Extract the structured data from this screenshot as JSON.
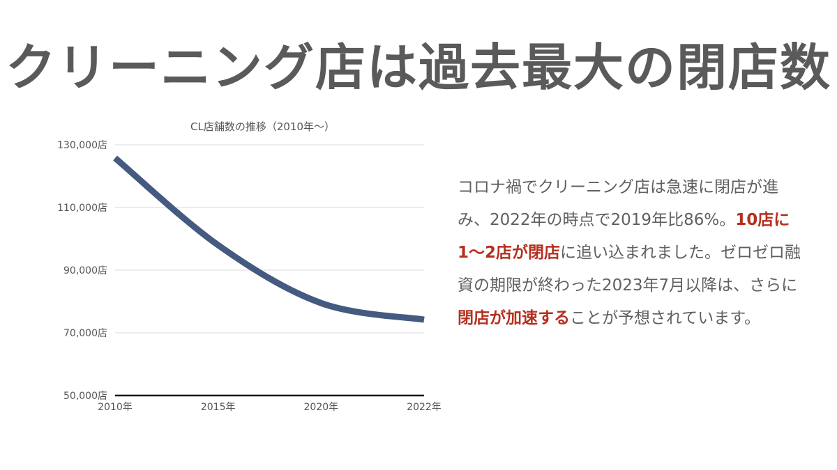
{
  "slide": {
    "title": "クリーニング店は過去最大の閉店数",
    "body_segments": [
      {
        "text": "コロナ禍でクリーニング店は急速に閉店が進み、2022年の時点で2019年比86%。",
        "highlight": false
      },
      {
        "text": "10店に1〜2店が閉店",
        "highlight": true
      },
      {
        "text": "に追い込まれました。ゼロゼロ融資の期限が終わった2023年7月以降は、さらに",
        "highlight": false
      },
      {
        "text": "閉店が加速する",
        "highlight": true
      },
      {
        "text": "ことが予想されています。",
        "highlight": false
      }
    ],
    "highlight_color": "#b5301f"
  },
  "chart_data": {
    "type": "line",
    "title": "CL店舗数の推移（2010年〜）",
    "categories": [
      "2010年",
      "2015年",
      "2020年",
      "2022年"
    ],
    "series": [
      {
        "name": "CL店舗数",
        "values": [
          125800,
          98000,
          79500,
          74200
        ],
        "color": "#445a80"
      }
    ],
    "ylim": [
      50000,
      130000
    ],
    "yticks": [
      50000,
      70000,
      90000,
      110000,
      130000
    ],
    "ytick_labels": [
      "50,000店",
      "70,000店",
      "90,000店",
      "110,000店",
      "130,000店"
    ],
    "xlabel": "",
    "ylabel": "",
    "grid": true,
    "legend": "none"
  }
}
